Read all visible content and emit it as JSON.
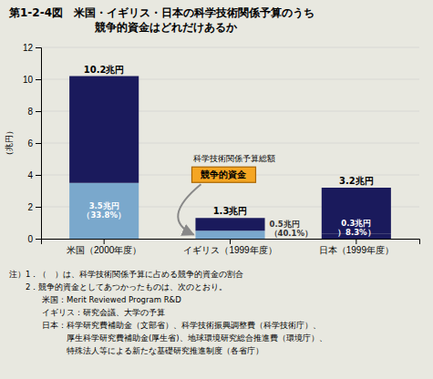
{
  "chart_data": {
    "type": "bar",
    "stacked": true,
    "title": [
      "第1-2-4図　米国・イギリス・日本の科学技術関係予算のうち",
      "競争的資金はどれだけあるか"
    ],
    "ylabel": "（兆円）",
    "categories": [
      "米国（2000年度）",
      "イギリス（1999年度）",
      "日本（1999年度）"
    ],
    "series": [
      {
        "colors": [
          "#7aa8cc",
          "#7aa8cc",
          "#1a1a5c"
        ],
        "values": [
          3.5,
          0.5,
          0.3
        ],
        "value_labels": [
          "3.5兆円\n（33.8%）",
          "0.5兆円\n（40.1%）",
          "0.3兆円\n）8.3%）"
        ]
      },
      {
        "color": "#1a1a5c",
        "values": [
          6.7,
          0.8,
          2.9
        ]
      }
    ],
    "totals": {
      "values": [
        10.2,
        1.3,
        3.2
      ],
      "value_labels": [
        "10.2兆円",
        "1.3兆円",
        "3.2兆円"
      ]
    },
    "data_labels": true,
    "annotations": [
      {
        "text": "科学技術関係予算総額"
      },
      {
        "text": "競争的資金",
        "color": "#f5a623"
      }
    ],
    "notes": [
      "注）1．（　）は、科学技術関係予算に占める競争的資金の割合",
      "　　2．競争的資金としてあつかったものは、次のとおり。",
      "　　　　米国：Merit Reviewed Program R&D",
      "　　　　イギリス：研究会議、大学の予算",
      "　　　　日本：科学研究費補助金（文部省）、科学技術振興調整費（科学技術庁）、",
      "　　　　　　　厚生科学研究費補助金(厚生省)、地球環境研究総合推進費（環境庁）、",
      "　　　　　　　特殊法人等による新たな基礎研究推進制度（各省庁）"
    ],
    "background_color": "#e8e8e0",
    "ylim": [
      0,
      12
    ],
    "yticks": [
      0,
      2,
      4,
      6,
      8,
      10,
      12
    ],
    "grid": true
  }
}
